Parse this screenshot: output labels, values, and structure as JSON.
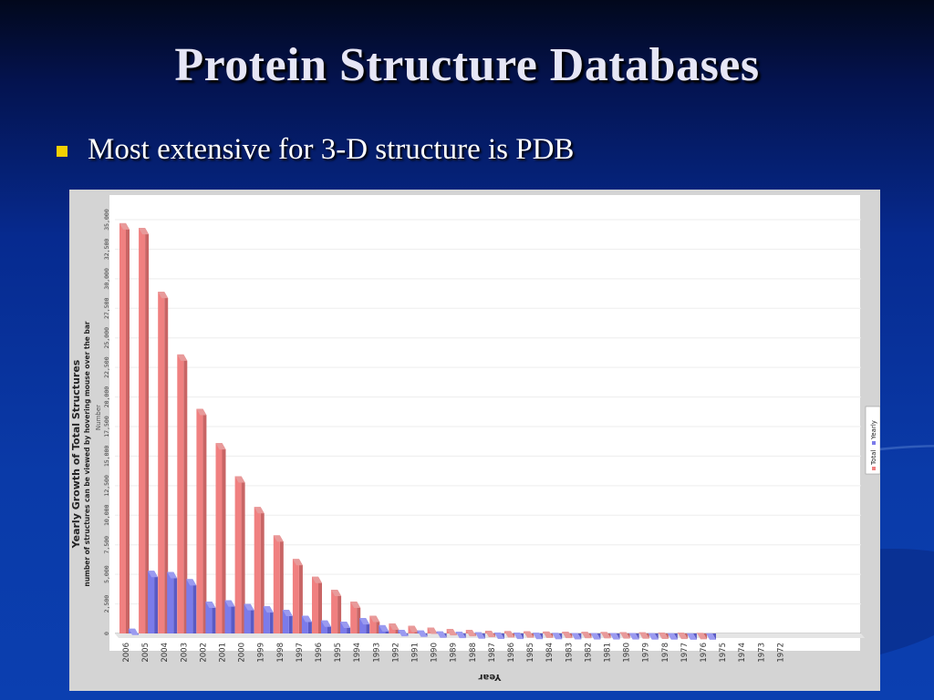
{
  "slide": {
    "title": "Protein Structure Databases",
    "bullet": "Most extensive for 3-D structure is PDB"
  },
  "colors": {
    "total": "#f08080",
    "yearly": "#7b7bea",
    "bullet": "#f5d000"
  },
  "chart_data": {
    "type": "bar",
    "title": "Yearly Growth of Total Structures",
    "subtitle": "number of structures can be viewed by hovering mouse over the bar",
    "xlabel": "Year",
    "ylabel": "Number",
    "ylim": [
      0,
      35000
    ],
    "yticks": [
      "0",
      "2,500",
      "5,000",
      "7,500",
      "10,000",
      "12,500",
      "15,000",
      "17,500",
      "20,000",
      "22,500",
      "25,000",
      "27,500",
      "30,000",
      "32,500",
      "35,000"
    ],
    "grid": true,
    "legend_position": "right",
    "categories": [
      "2006",
      "2005",
      "2004",
      "2003",
      "2002",
      "2001",
      "2000",
      "1999",
      "1998",
      "1997",
      "1996",
      "1995",
      "1994",
      "1993",
      "1992",
      "1991",
      "1990",
      "1989",
      "1988",
      "1987",
      "1986",
      "1985",
      "1984",
      "1983",
      "1982",
      "1981",
      "1980",
      "1979",
      "1978",
      "1977",
      "1976",
      "1975",
      "1974",
      "1973",
      "1972"
    ],
    "series": [
      {
        "name": "Total",
        "values": [
          34700,
          34300,
          28900,
          23600,
          19000,
          16100,
          13300,
          10700,
          8300,
          6300,
          4800,
          3700,
          2700,
          1500,
          850,
          650,
          500,
          380,
          300,
          230,
          200,
          180,
          160,
          145,
          135,
          125,
          110,
          95,
          80,
          70,
          50,
          0,
          0,
          0,
          0
        ]
      },
      {
        "name": "Yearly",
        "values": [
          400,
          5300,
          5200,
          4600,
          2700,
          2800,
          2500,
          2300,
          2000,
          1500,
          1100,
          1000,
          1300,
          700,
          300,
          250,
          170,
          140,
          100,
          80,
          70,
          60,
          50,
          40,
          30,
          30,
          25,
          20,
          15,
          10,
          10,
          0,
          0,
          0,
          0
        ]
      }
    ]
  }
}
